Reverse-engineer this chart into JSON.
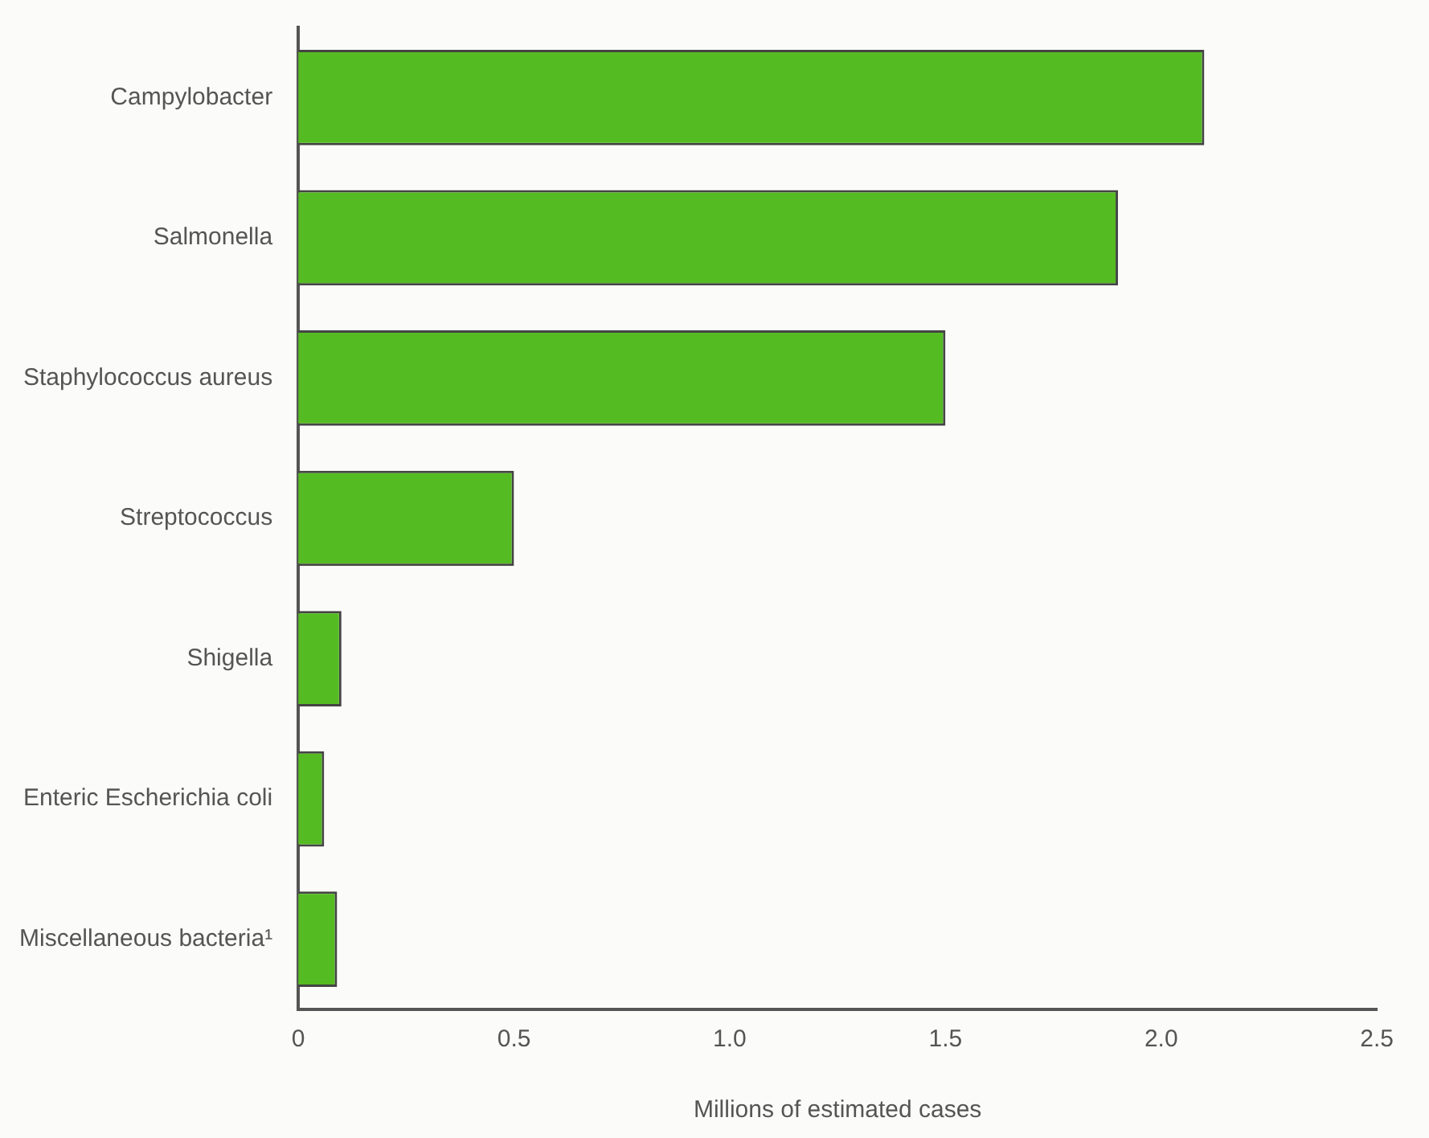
{
  "chart_data": {
    "type": "bar",
    "orientation": "horizontal",
    "xlabel": "Millions of estimated cases",
    "categories": [
      "Campylobacter",
      "Salmonella",
      "Staphylococcus aureus",
      "Streptococcus",
      "Shigella",
      "Enteric Escherichia coli",
      "Miscellaneous bacteria¹"
    ],
    "values": [
      2.1,
      1.9,
      1.5,
      0.5,
      0.1,
      0.06,
      0.09
    ],
    "color": "#55bb22",
    "xlim": [
      0,
      2.5
    ],
    "xticks": [
      0,
      0.5,
      {
        "value": 1,
        "label": "1.0"
      },
      1.5,
      {
        "value": 2,
        "label": "2.0"
      },
      2.5
    ],
    "grid": false
  }
}
